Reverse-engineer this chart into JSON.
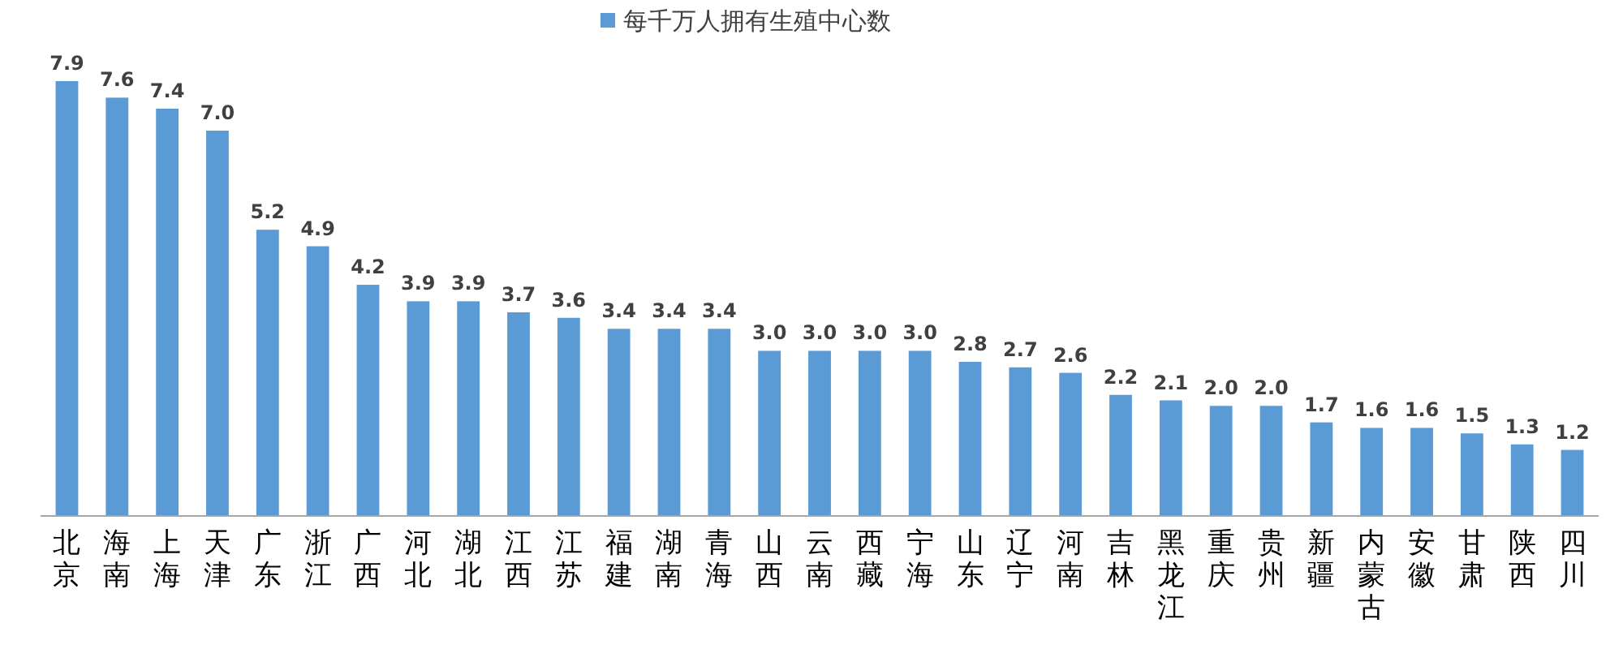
{
  "chart_data": {
    "type": "bar",
    "categories": [
      "北京",
      "海南",
      "上海",
      "天津",
      "广东",
      "浙江",
      "广西",
      "河北",
      "湖北",
      "江西",
      "江苏",
      "福建",
      "湖南",
      "青海",
      "山西",
      "云南",
      "西藏",
      "宁海",
      "山东",
      "辽宁",
      "河南",
      "吉林",
      "黑龙江",
      "重庆",
      "贵州",
      "新疆",
      "内蒙古",
      "安徽",
      "甘肃",
      "陕西",
      "四川"
    ],
    "series": [
      {
        "name": "每千万人拥有生殖中心数",
        "color": "#5b9bd5",
        "values": [
          7.9,
          7.6,
          7.4,
          7.0,
          5.2,
          4.9,
          4.2,
          3.9,
          3.9,
          3.7,
          3.6,
          3.4,
          3.4,
          3.4,
          3.0,
          3.0,
          3.0,
          3.0,
          2.8,
          2.7,
          2.6,
          2.2,
          2.1,
          2.0,
          2.0,
          1.7,
          1.6,
          1.6,
          1.5,
          1.3,
          1.2
        ],
        "value_labels": [
          "7.9",
          "7.6",
          "7.4",
          "7.0",
          "5.2",
          "4.9",
          "4.2",
          "3.9",
          "3.9",
          "3.7",
          "3.6",
          "3.4",
          "3.4",
          "3.4",
          "3.0",
          "3.0",
          "3.0",
          "3.0",
          "2.8",
          "2.7",
          "2.6",
          "2.2",
          "2.1",
          "2.0",
          "2.0",
          "1.7",
          "1.6",
          "1.6",
          "1.5",
          "1.3",
          "1.2"
        ]
      }
    ],
    "legend": "top"
  }
}
